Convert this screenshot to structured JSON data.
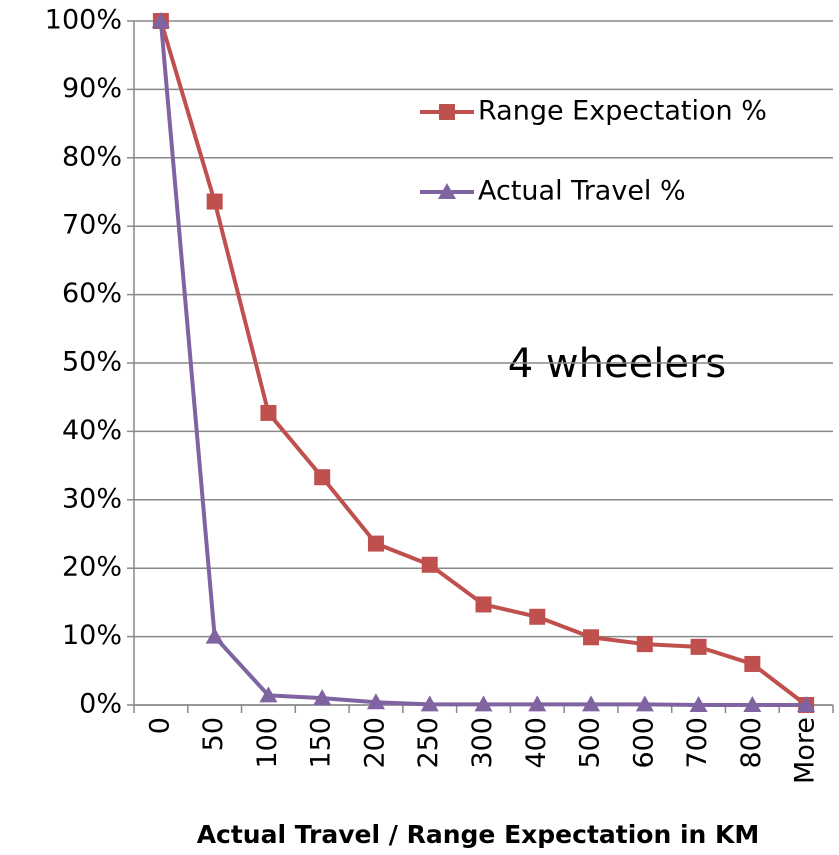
{
  "chart_data": {
    "type": "line",
    "annotation": "4 wheelers",
    "x_label": "Actual Travel / Range Expectation in KM",
    "categories": [
      "0",
      "50",
      "100",
      "150",
      "200",
      "250",
      "300",
      "400",
      "500",
      "600",
      "700",
      "800",
      "More"
    ],
    "series": [
      {
        "name": "Range Expectation %",
        "color": "#c0504d",
        "marker": "square",
        "values": [
          100,
          73.6,
          42.7,
          33.3,
          23.6,
          20.5,
          14.7,
          12.9,
          9.9,
          8.9,
          8.5,
          6.0,
          0
        ]
      },
      {
        "name": "Actual Travel %",
        "color": "#8064a2",
        "marker": "triangle",
        "values": [
          100,
          10.0,
          1.4,
          1.0,
          0.4,
          0.1,
          0.1,
          0.1,
          0.1,
          0.1,
          0,
          0,
          0
        ]
      }
    ],
    "ylim": [
      0,
      100
    ],
    "yticks": [
      {
        "value": 0,
        "label": "0%"
      },
      {
        "value": 10,
        "label": "10%"
      },
      {
        "value": 20,
        "label": "20%"
      },
      {
        "value": 30,
        "label": "30%"
      },
      {
        "value": 40,
        "label": "40%"
      },
      {
        "value": 50,
        "label": "50%"
      },
      {
        "value": 60,
        "label": "60%"
      },
      {
        "value": 70,
        "label": "70%"
      },
      {
        "value": 80,
        "label": "80%"
      },
      {
        "value": 90,
        "label": "90%"
      },
      {
        "value": 100,
        "label": "100%"
      }
    ],
    "grid": true,
    "legend": "upper right"
  }
}
